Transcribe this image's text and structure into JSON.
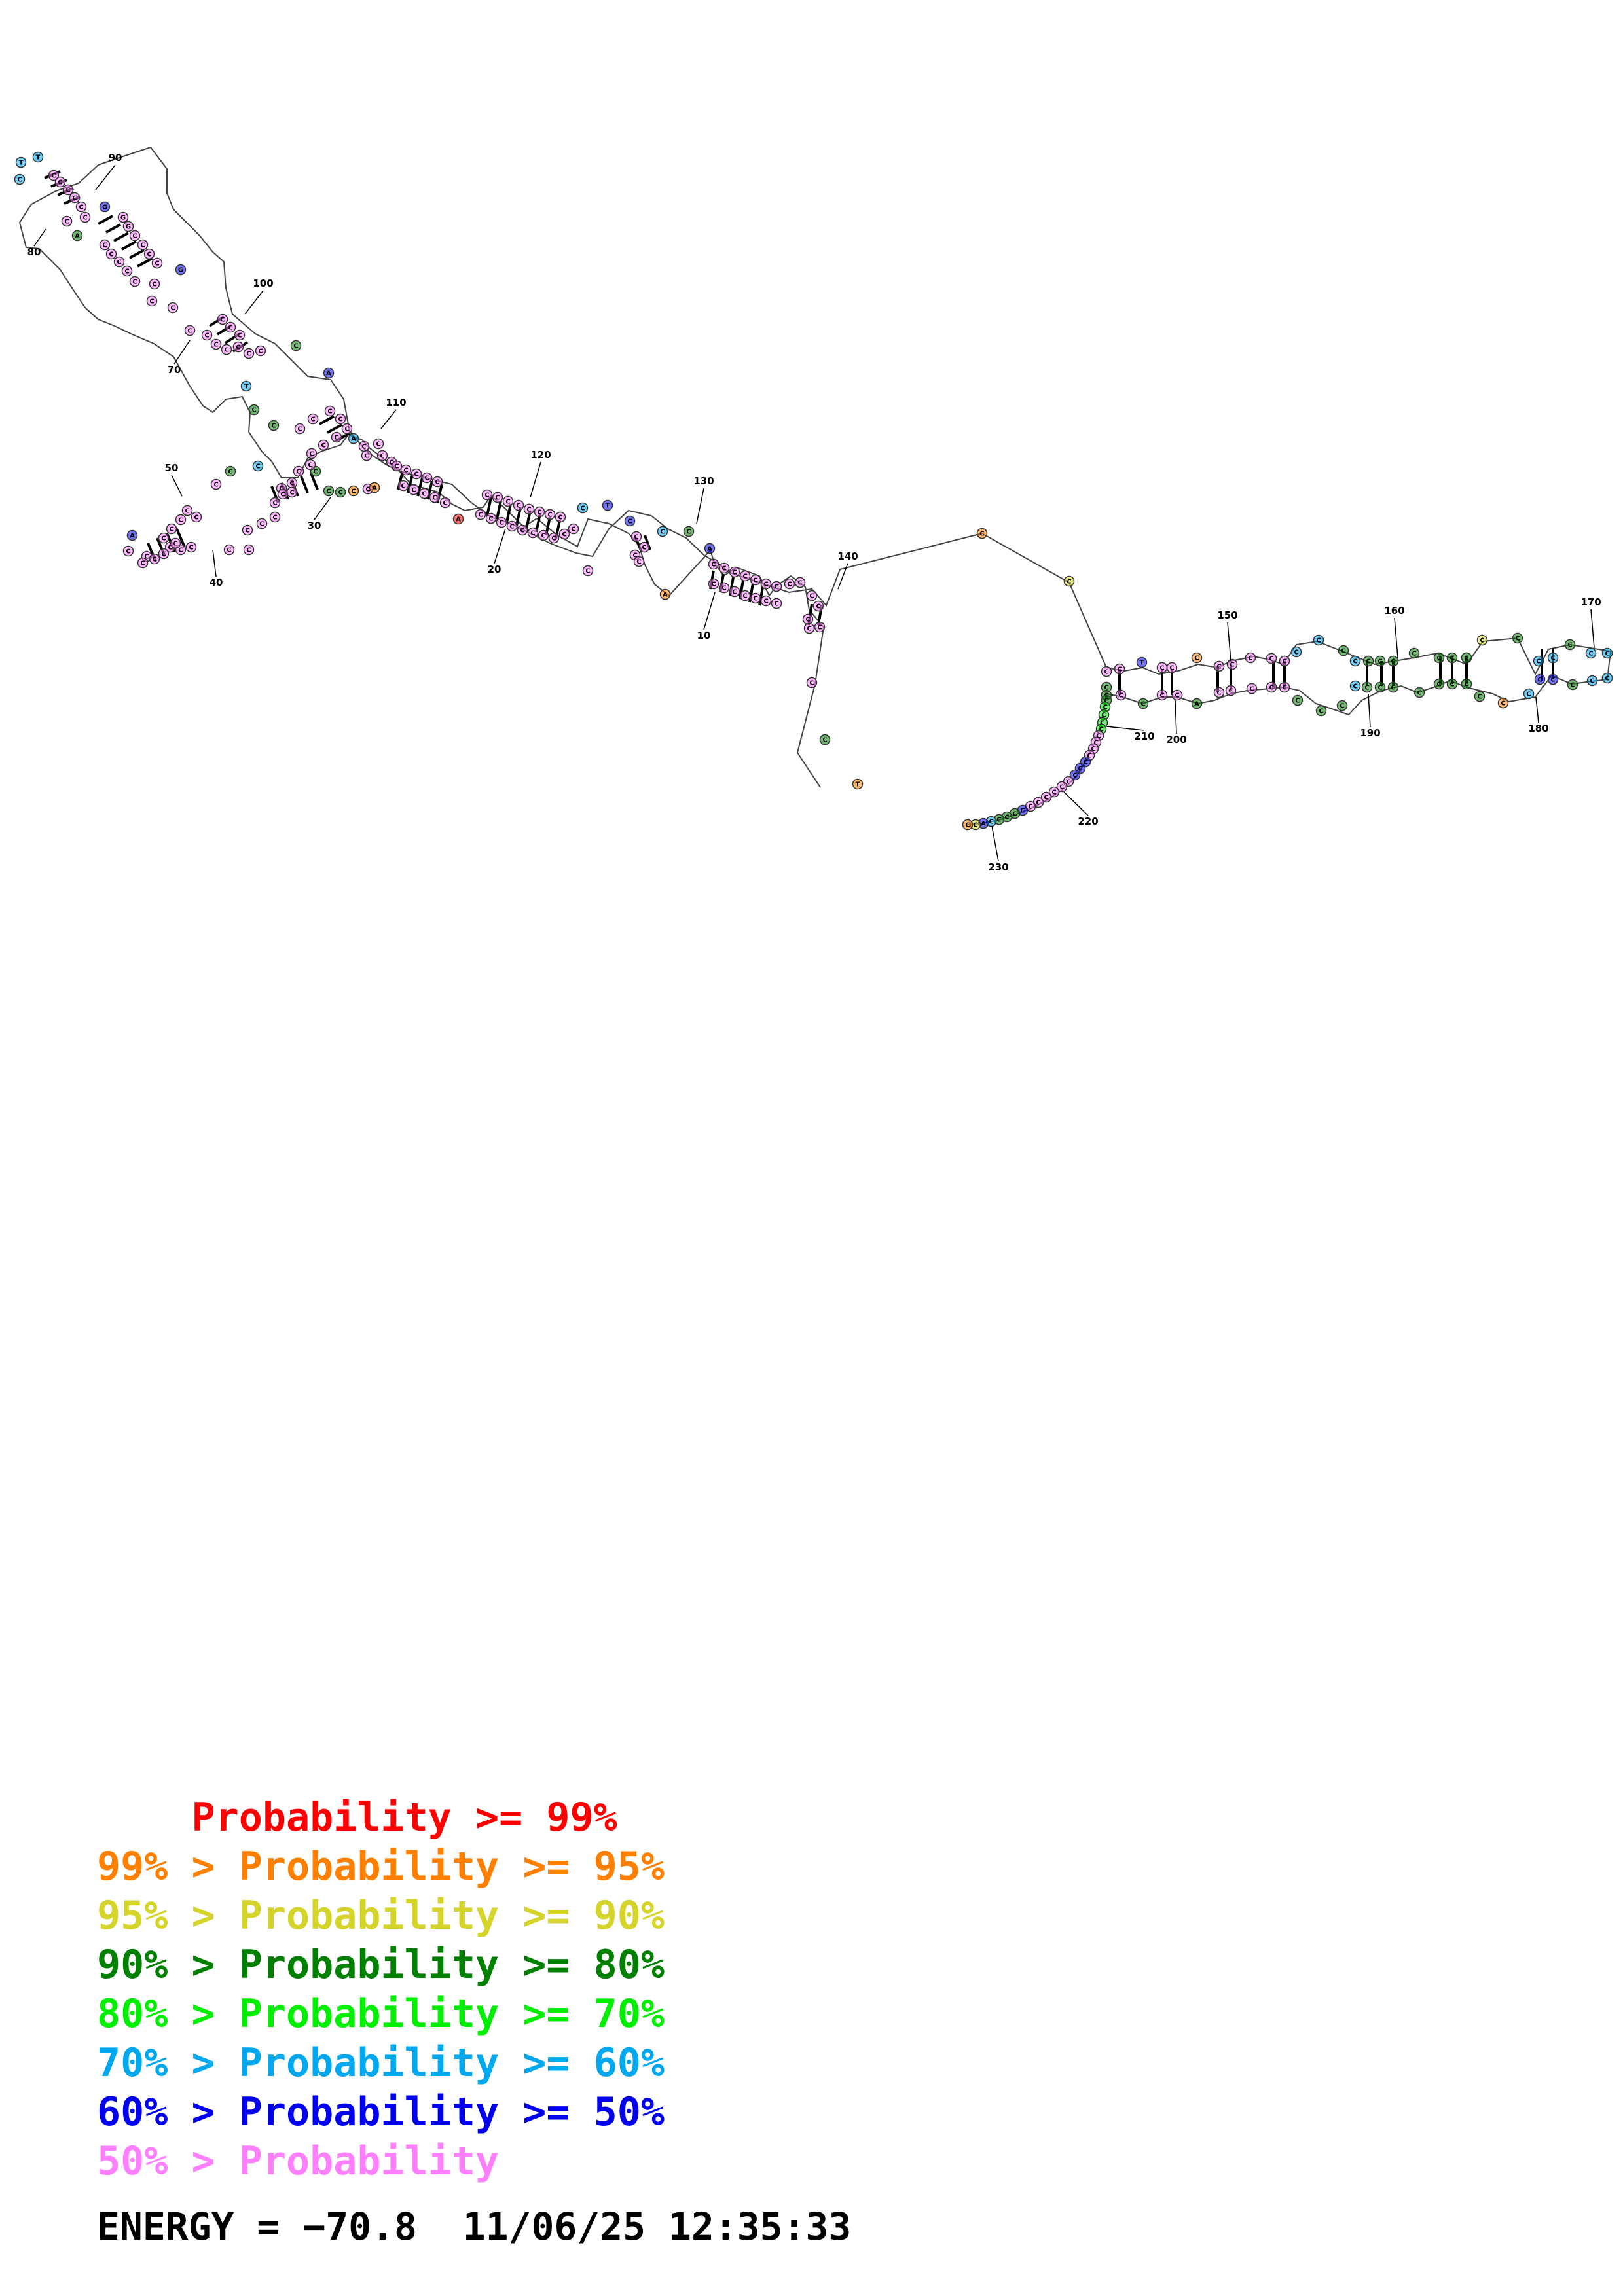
{
  "legend": [
    {
      "prefix": "    ",
      "text": "Probability >= 99%",
      "color": "#ff0000"
    },
    {
      "prefix": "99% > ",
      "text": "Probability >= 95%",
      "color": "#ff8000"
    },
    {
      "prefix": "95% > ",
      "text": "Probability >= 90%",
      "color": "#d4d42a"
    },
    {
      "prefix": "90% > ",
      "text": "Probability >= 80%",
      "color": "#008000"
    },
    {
      "prefix": "80% > ",
      "text": "Probability >= 70%",
      "color": "#00ee00"
    },
    {
      "prefix": "70% > ",
      "text": "Probability >= 60%",
      "color": "#00a8f0"
    },
    {
      "prefix": "60% > ",
      "text": "Probability >= 50%",
      "color": "#0000ee"
    },
    {
      "prefix": "50% > ",
      "text": "Probability",
      "color": "#ff80ff"
    }
  ],
  "footer": {
    "energy_text": "ENERGY = −70.8",
    "timestamp": "11/06/25 12:35:33"
  },
  "position_labels": [
    "10",
    "20",
    "30",
    "40",
    "50",
    "70",
    "80",
    "90",
    "100",
    "110",
    "120",
    "130",
    "140",
    "150",
    "160",
    "170",
    "180",
    "190",
    "200",
    "210",
    "220",
    "230"
  ],
  "color_classes": {
    "p99": "#ff0000",
    "p95": "#ff8000",
    "p90": "#d4d42a",
    "p80": "#008000",
    "p70": "#00ee00",
    "p60": "#00a8f0",
    "p50": "#0000ee",
    "plow": "#ff80ff"
  }
}
